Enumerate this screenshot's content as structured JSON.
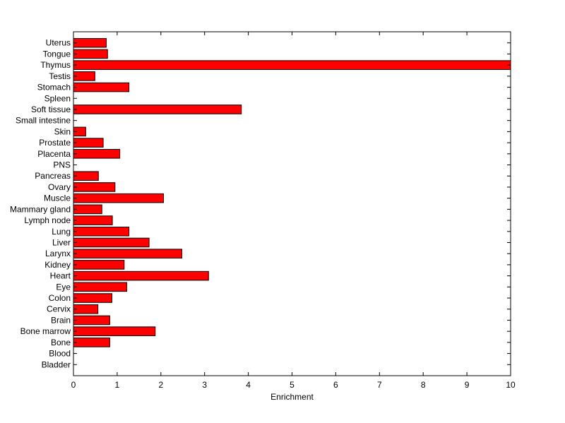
{
  "chart_data": {
    "type": "bar",
    "orientation": "horizontal",
    "title": "",
    "xlabel": "Enrichment",
    "ylabel": "",
    "xlim": [
      0,
      10
    ],
    "xticks": [
      "0",
      "1",
      "2",
      "3",
      "4",
      "5",
      "6",
      "7",
      "8",
      "9",
      "10"
    ],
    "grid": false,
    "bar_color": "#ff0000",
    "bar_edge_color": "#000000",
    "categories": [
      "Uterus",
      "Tongue",
      "Thymus",
      "Testis",
      "Stomach",
      "Spleen",
      "Soft tissue",
      "Small intestine",
      "Skin",
      "Prostate",
      "Placenta",
      "PNS",
      "Pancreas",
      "Ovary",
      "Muscle",
      "Mammary gland",
      "Lymph node",
      "Lung",
      "Liver",
      "Larynx",
      "Kidney",
      "Heart",
      "Eye",
      "Colon",
      "Cervix",
      "Brain",
      "Bone marrow",
      "Bone",
      "Blood",
      "Bladder"
    ],
    "values": [
      0.75,
      0.78,
      10.0,
      0.49,
      1.27,
      0,
      3.84,
      0,
      0.28,
      0.68,
      1.06,
      0,
      0.57,
      0.95,
      2.06,
      0.65,
      0.89,
      1.27,
      1.73,
      2.48,
      1.16,
      3.09,
      1.22,
      0.88,
      0.56,
      0.83,
      1.87,
      0.83,
      0,
      0
    ]
  }
}
